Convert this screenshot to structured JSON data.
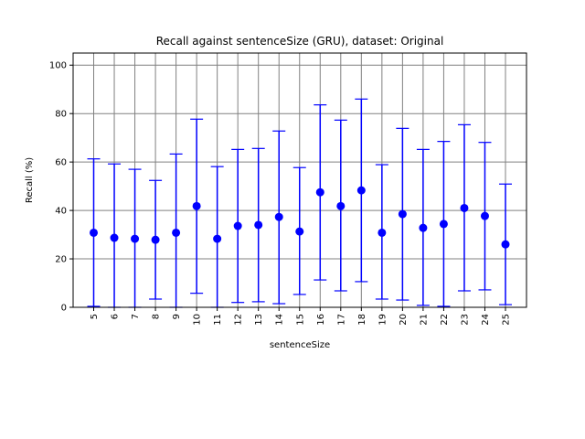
{
  "chart_data": {
    "type": "scatter",
    "title": "Recall against sentenceSize (GRU), dataset: Original",
    "xlabel": "sentenceSize",
    "ylabel": "Recall (%)",
    "ylim": [
      0,
      105
    ],
    "yticks": [
      0,
      20,
      40,
      60,
      80,
      100
    ],
    "grid": true,
    "categories": [
      "5",
      "6",
      "7",
      "8",
      "9",
      "10",
      "11",
      "12",
      "13",
      "14",
      "15",
      "16",
      "17",
      "18",
      "19",
      "20",
      "21",
      "22",
      "23",
      "24",
      "25"
    ],
    "series": [
      {
        "color": "#0000ff",
        "marker": "circle",
        "values": [
          30.8,
          28.7,
          28.3,
          27.9,
          30.8,
          41.8,
          28.3,
          33.6,
          34.0,
          37.3,
          31.3,
          47.5,
          41.8,
          48.3,
          30.8,
          38.5,
          32.8,
          34.4,
          41.0,
          37.7,
          26.0
        ],
        "error_low": [
          0.4,
          0,
          0,
          3.4,
          0,
          5.8,
          0,
          2.0,
          2.3,
          1.5,
          5.3,
          11.3,
          6.8,
          10.6,
          3.4,
          3.0,
          0.8,
          0.4,
          6.8,
          7.2,
          1.1
        ],
        "error_high": [
          61.3,
          59.2,
          57.0,
          52.4,
          63.3,
          77.7,
          58.1,
          65.2,
          65.6,
          72.8,
          57.7,
          83.6,
          77.3,
          86.0,
          58.9,
          73.9,
          65.2,
          68.5,
          75.4,
          68.1,
          50.9
        ]
      }
    ]
  }
}
